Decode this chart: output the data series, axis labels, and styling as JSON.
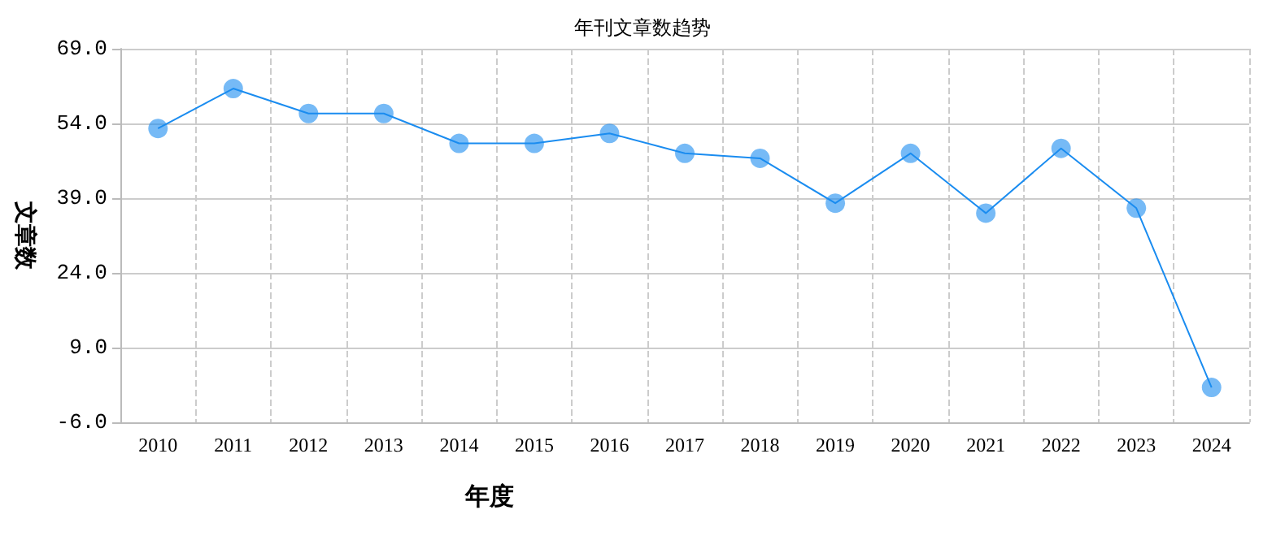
{
  "chart_data": {
    "type": "line",
    "title": "年刊文章数趋势",
    "xlabel": "年度",
    "ylabel": "文章数",
    "categories": [
      "2010",
      "2011",
      "2012",
      "2013",
      "2014",
      "2015",
      "2016",
      "2017",
      "2018",
      "2019",
      "2020",
      "2021",
      "2022",
      "2023",
      "2024"
    ],
    "series": [
      {
        "color": "#1a8cf0",
        "values": [
          53,
          61,
          56,
          56,
          50,
          50,
          52,
          48,
          47,
          38,
          48,
          36,
          49,
          37,
          1
        ]
      }
    ],
    "ylim": [
      -6,
      69
    ],
    "yticks": [
      {
        "value": -6,
        "label": "-6.0"
      },
      {
        "value": 9,
        "label": "9.0"
      },
      {
        "value": 24,
        "label": "24.0"
      },
      {
        "value": 39,
        "label": "39.0"
      },
      {
        "value": 54,
        "label": "54.0"
      },
      {
        "value": 69,
        "label": "69.0"
      }
    ],
    "grid": true,
    "marker": "circle",
    "line_style": "solid"
  }
}
